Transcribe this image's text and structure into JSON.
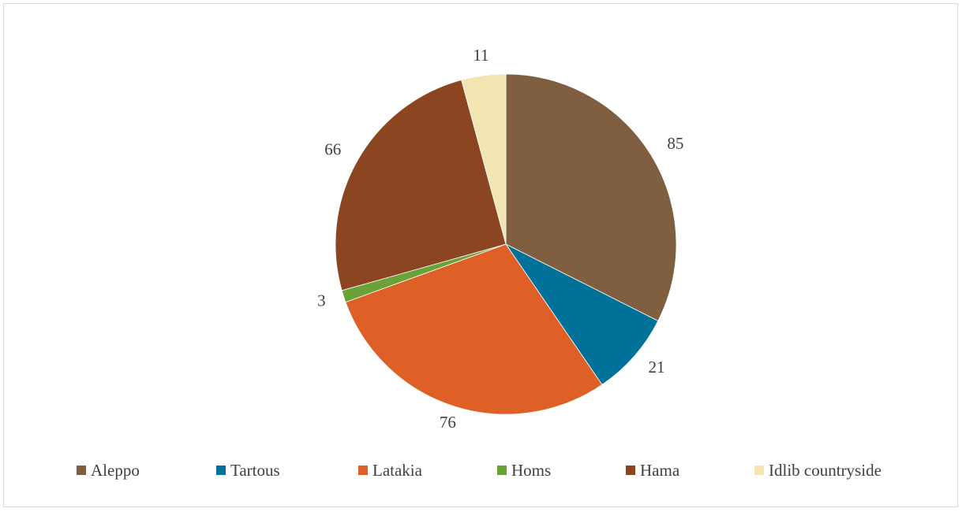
{
  "chart_data": {
    "type": "pie",
    "title": "",
    "categories": [
      "Aleppo",
      "Tartous",
      "Latakia",
      "Homs",
      "Hama",
      "Idlib countryside"
    ],
    "values": [
      85,
      21,
      76,
      3,
      66,
      11
    ],
    "colors": [
      "#7f5f3f",
      "#00729a",
      "#de6026",
      "#6aa237",
      "#8b4521",
      "#f2e5b1"
    ],
    "data_labels": [
      "85",
      "21",
      "76",
      "3",
      "66",
      "11"
    ],
    "legend_position": "bottom"
  },
  "legend": {
    "items": [
      {
        "label": "Aleppo"
      },
      {
        "label": "Tartous"
      },
      {
        "label": "Latakia"
      },
      {
        "label": "Homs"
      },
      {
        "label": "Hama"
      },
      {
        "label": "Idlib countryside"
      }
    ]
  }
}
